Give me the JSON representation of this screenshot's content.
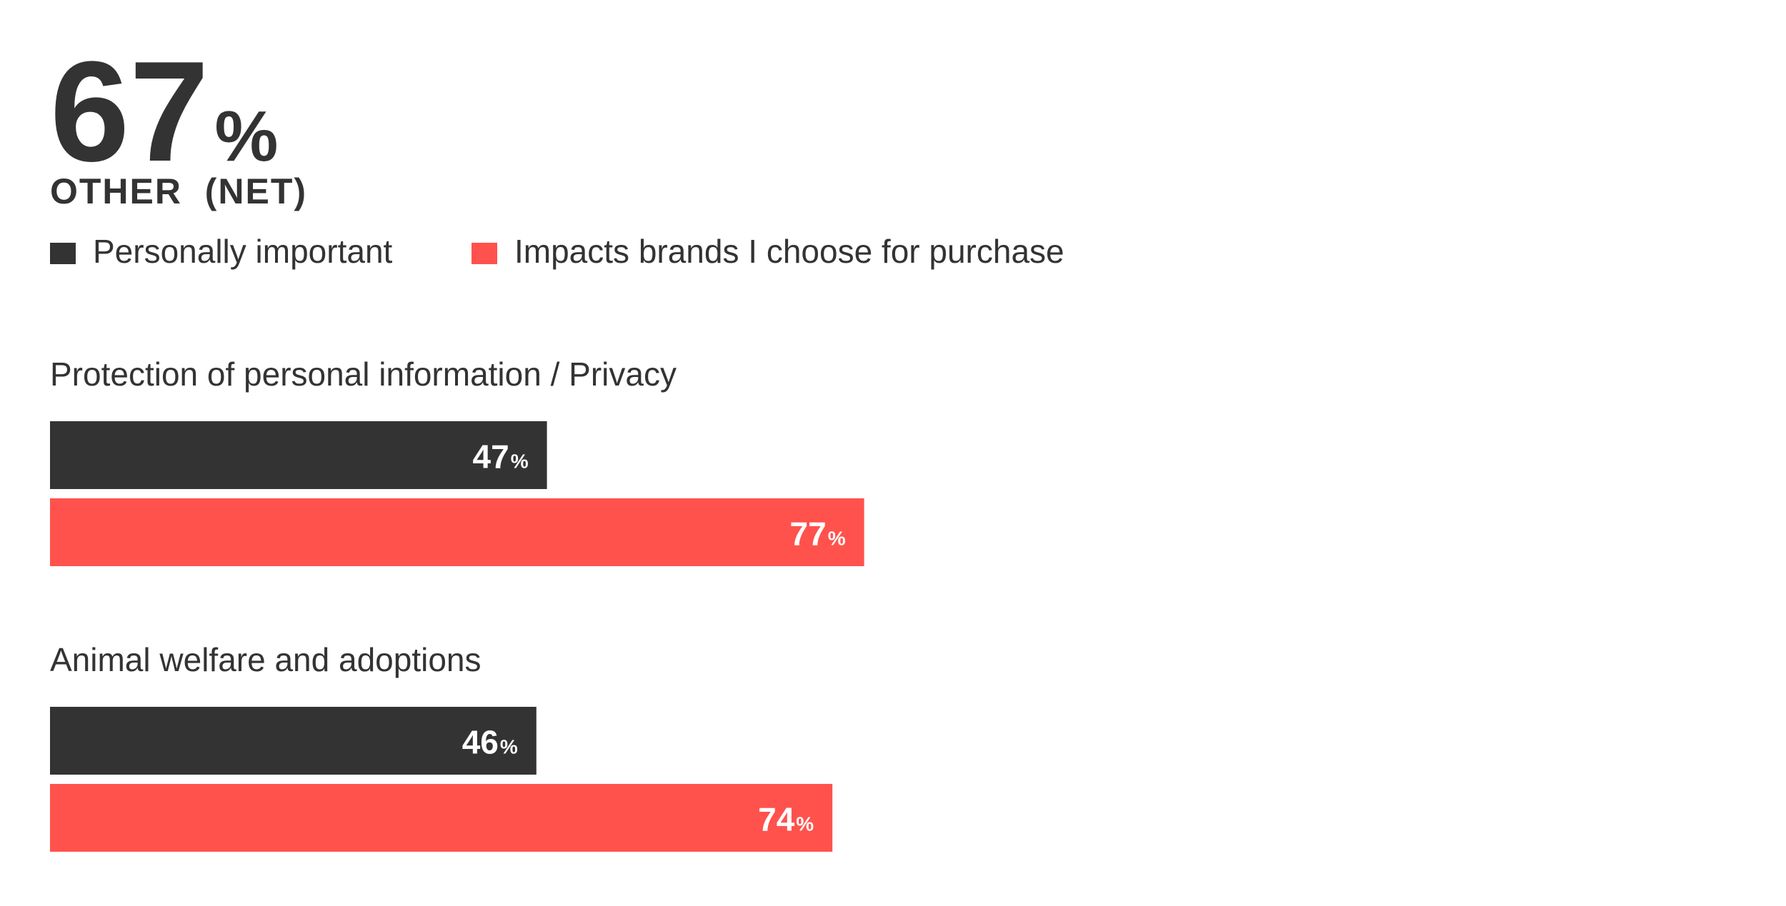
{
  "headline": {
    "value": "67",
    "unit": "%"
  },
  "colors": {
    "series_0": "#333333",
    "series_1": "#ff524d",
    "text": "#333333",
    "value_label": "#ffffff"
  },
  "chart_data": {
    "type": "bar",
    "orientation": "horizontal",
    "title": "OTHER  (NET)",
    "xlabel": "",
    "ylabel": "",
    "xlim": [
      0,
      100
    ],
    "grid": false,
    "legend_position": "top-left",
    "categories": [
      "Protection of personal information / Privacy",
      "Animal welfare and adoptions"
    ],
    "series": [
      {
        "name": "Personally important",
        "values": [
          47,
          46
        ],
        "color": "#333333"
      },
      {
        "name": "Impacts brands I choose for purchase",
        "values": [
          77,
          74
        ],
        "color": "#ff524d"
      }
    ],
    "value_suffix": "%"
  }
}
